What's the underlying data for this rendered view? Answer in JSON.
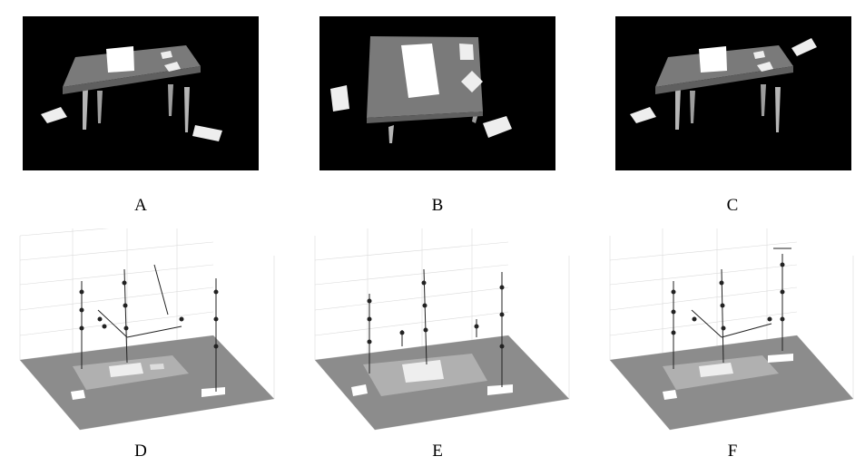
{
  "figure": {
    "panels": [
      {
        "id": "A",
        "label": "A",
        "kind": "rendered-scene"
      },
      {
        "id": "B",
        "label": "B",
        "kind": "rendered-scene"
      },
      {
        "id": "C",
        "label": "C",
        "kind": "rendered-scene"
      },
      {
        "id": "D",
        "label": "D",
        "kind": "3d-plot"
      },
      {
        "id": "E",
        "label": "E",
        "kind": "3d-plot"
      },
      {
        "id": "F",
        "label": "F",
        "kind": "3d-plot"
      }
    ]
  },
  "colors": {
    "scene_background": "#000000",
    "table_top": "#7a7a7a",
    "table_legs": "#b8b8b8",
    "plot_floor": "#8c8c8c",
    "paper": "#ffffff"
  }
}
